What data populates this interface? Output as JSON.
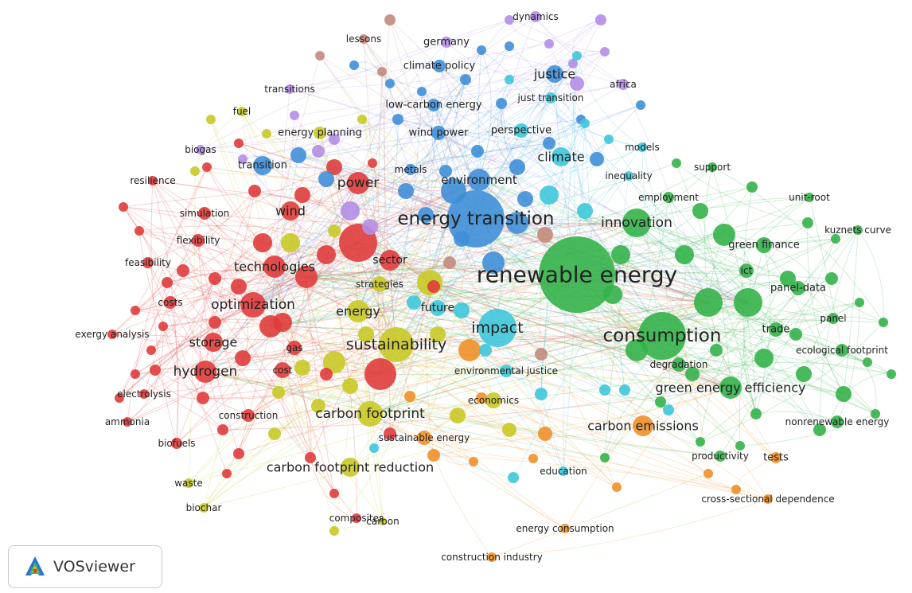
{
  "app": {
    "logo_text": "VOSviewer"
  },
  "clusters": {
    "red": "#e03c3c",
    "green": "#34b24a",
    "blue": "#3f8fd8",
    "yellow": "#c9c927",
    "purple": "#b48ee6",
    "cyan": "#3fc6dc",
    "orange": "#f0902a",
    "brown": "#c48a7c"
  },
  "labels": {
    "renewable_energy": "renewable energy",
    "energy_transition": "energy transition",
    "consumption": "consumption",
    "impact": "impact",
    "sustainability": "sustainability",
    "carbon_footprint": "carbon footprint",
    "power": "power",
    "innovation": "innovation",
    "optimization": "optimization",
    "hydrogen": "hydrogen",
    "technologies": "technologies",
    "energy": "energy",
    "wind": "wind",
    "storage": "storage",
    "carbon_emissions": "carbon emissions",
    "green_energy_efficiency": "green energy efficiency",
    "carbon_footprint_reduction": "carbon footprint reduction",
    "justice": "justice",
    "climate": "climate",
    "environment": "environment",
    "sector": "sector",
    "future": "future",
    "strategies": "strategies",
    "gas": "gas",
    "cost": "cost",
    "costs": "costs",
    "exergy_analysis": "exergy analysis",
    "electrolysis": "electrolysis",
    "ammonia": "ammonia",
    "biofuels": "biofuels",
    "construction": "construction",
    "waste": "waste",
    "biochar": "biochar",
    "composites": "composites",
    "carbon": "carbon",
    "sustainable_energy": "sustainable energy",
    "economics": "economics",
    "environmental_justice": "environmental justice",
    "education": "education",
    "energy_consumption": "energy consumption",
    "construction_industry": "construction industry",
    "productivity": "productivity",
    "tests": "tests",
    "cross_sectional_dependence": "cross-sectional dependence",
    "nonrenewable_energy": "nonrenewable energy",
    "ecological_footprint": "ecological footprint",
    "panel": "panel",
    "trade": "trade",
    "panel_data": "panel-data",
    "ict": "ict",
    "green_finance": "green finance",
    "kuznets_curve": "kuznets curve",
    "unit_root": "unit-root",
    "employment": "employment",
    "support": "support",
    "models": "models",
    "inequality": "inequality",
    "degradation": "degradation",
    "perspective": "perspective",
    "wind_power": "wind power",
    "metals": "metals",
    "just_transition": "just transition",
    "africa": "africa",
    "dynamics": "dynamics",
    "germany": "germany",
    "lessons": "lessons",
    "climate_policy": "climate policy",
    "low_carbon_energy": "low-carbon energy",
    "transitions": "transitions",
    "fuel": "fuel",
    "energy_planning": "energy planning",
    "biogas": "biogas",
    "transition": "transition",
    "resilience": "resilience",
    "simulation": "simulation",
    "flexibility": "flexibility",
    "feasibility": "feasibility"
  }
}
